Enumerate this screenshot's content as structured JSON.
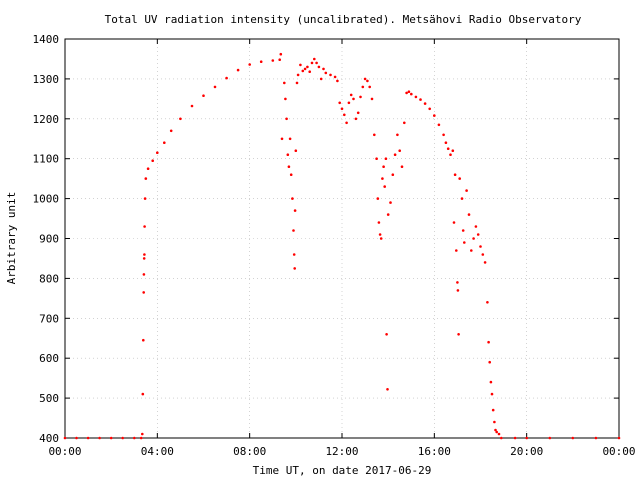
{
  "chart_data": {
    "type": "scatter",
    "title": "Total UV radiation intensity (uncalibrated). Metsähovi Radio Observatory",
    "xlabel": "Time UT, on date 2017-06-29",
    "ylabel": "Arbitrary unit",
    "xlim": [
      0,
      24
    ],
    "ylim": [
      400,
      1400
    ],
    "x_ticks": [
      0,
      4,
      8,
      12,
      16,
      20,
      24
    ],
    "x_tick_labels": [
      "00:00",
      "04:00",
      "08:00",
      "12:00",
      "16:00",
      "20:00",
      "00:00"
    ],
    "y_ticks": [
      400,
      500,
      600,
      700,
      800,
      900,
      1000,
      1100,
      1200,
      1300,
      1400
    ],
    "grid": true,
    "marker_color": "#ff0000",
    "series": [
      {
        "points": [
          [
            0.0,
            400
          ],
          [
            0.5,
            400
          ],
          [
            1.0,
            400
          ],
          [
            1.5,
            400
          ],
          [
            2.0,
            400
          ],
          [
            2.5,
            400
          ],
          [
            3.0,
            400
          ],
          [
            3.3,
            400
          ],
          [
            3.35,
            410
          ],
          [
            3.37,
            510
          ],
          [
            3.39,
            645
          ],
          [
            3.41,
            765
          ],
          [
            3.42,
            810
          ],
          [
            3.43,
            850
          ],
          [
            3.44,
            860
          ],
          [
            3.45,
            930
          ],
          [
            3.47,
            1000
          ],
          [
            3.5,
            1050
          ],
          [
            3.6,
            1075
          ],
          [
            3.8,
            1095
          ],
          [
            4.0,
            1115
          ],
          [
            4.3,
            1140
          ],
          [
            4.6,
            1170
          ],
          [
            5.0,
            1200
          ],
          [
            5.5,
            1232
          ],
          [
            6.0,
            1258
          ],
          [
            6.5,
            1280
          ],
          [
            7.0,
            1302
          ],
          [
            7.5,
            1322
          ],
          [
            8.0,
            1336
          ],
          [
            8.5,
            1343
          ],
          [
            9.0,
            1346
          ],
          [
            9.3,
            1348
          ],
          [
            9.35,
            1362
          ],
          [
            9.4,
            1150
          ],
          [
            9.5,
            1290
          ],
          [
            9.55,
            1250
          ],
          [
            9.6,
            1200
          ],
          [
            9.65,
            1110
          ],
          [
            9.7,
            1080
          ],
          [
            9.75,
            1150
          ],
          [
            9.8,
            1060
          ],
          [
            9.85,
            1000
          ],
          [
            9.9,
            920
          ],
          [
            9.93,
            860
          ],
          [
            9.95,
            825
          ],
          [
            9.97,
            970
          ],
          [
            10.0,
            1120
          ],
          [
            10.05,
            1290
          ],
          [
            10.1,
            1310
          ],
          [
            10.2,
            1335
          ],
          [
            10.3,
            1320
          ],
          [
            10.4,
            1325
          ],
          [
            10.5,
            1330
          ],
          [
            10.6,
            1318
          ],
          [
            10.7,
            1340
          ],
          [
            10.8,
            1350
          ],
          [
            10.9,
            1340
          ],
          [
            11.0,
            1330
          ],
          [
            11.1,
            1300
          ],
          [
            11.2,
            1325
          ],
          [
            11.3,
            1315
          ],
          [
            11.5,
            1310
          ],
          [
            11.7,
            1305
          ],
          [
            11.8,
            1295
          ],
          [
            11.9,
            1240
          ],
          [
            12.0,
            1225
          ],
          [
            12.1,
            1210
          ],
          [
            12.2,
            1190
          ],
          [
            12.3,
            1240
          ],
          [
            12.4,
            1260
          ],
          [
            12.5,
            1250
          ],
          [
            12.6,
            1200
          ],
          [
            12.7,
            1215
          ],
          [
            12.8,
            1255
          ],
          [
            12.9,
            1280
          ],
          [
            13.0,
            1300
          ],
          [
            13.1,
            1295
          ],
          [
            13.2,
            1280
          ],
          [
            13.3,
            1250
          ],
          [
            13.4,
            1160
          ],
          [
            13.5,
            1100
          ],
          [
            13.55,
            1000
          ],
          [
            13.6,
            940
          ],
          [
            13.65,
            910
          ],
          [
            13.7,
            900
          ],
          [
            13.75,
            1050
          ],
          [
            13.8,
            1080
          ],
          [
            13.85,
            1030
          ],
          [
            13.9,
            1100
          ],
          [
            13.93,
            660
          ],
          [
            13.97,
            522
          ],
          [
            14.0,
            960
          ],
          [
            14.1,
            990
          ],
          [
            14.2,
            1060
          ],
          [
            14.3,
            1110
          ],
          [
            14.4,
            1160
          ],
          [
            14.5,
            1120
          ],
          [
            14.6,
            1080
          ],
          [
            14.7,
            1190
          ],
          [
            14.8,
            1265
          ],
          [
            14.9,
            1268
          ],
          [
            15.0,
            1262
          ],
          [
            15.2,
            1255
          ],
          [
            15.4,
            1248
          ],
          [
            15.6,
            1238
          ],
          [
            15.8,
            1225
          ],
          [
            16.0,
            1208
          ],
          [
            16.2,
            1185
          ],
          [
            16.4,
            1160
          ],
          [
            16.5,
            1140
          ],
          [
            16.6,
            1125
          ],
          [
            16.7,
            1110
          ],
          [
            16.8,
            1120
          ],
          [
            16.85,
            940
          ],
          [
            16.9,
            1060
          ],
          [
            16.95,
            870
          ],
          [
            17.0,
            790
          ],
          [
            17.02,
            770
          ],
          [
            17.05,
            660
          ],
          [
            17.1,
            1050
          ],
          [
            17.2,
            1000
          ],
          [
            17.25,
            920
          ],
          [
            17.3,
            890
          ],
          [
            17.4,
            1020
          ],
          [
            17.5,
            960
          ],
          [
            17.6,
            870
          ],
          [
            17.7,
            900
          ],
          [
            17.8,
            930
          ],
          [
            17.9,
            910
          ],
          [
            18.0,
            880
          ],
          [
            18.1,
            860
          ],
          [
            18.2,
            840
          ],
          [
            18.3,
            740
          ],
          [
            18.35,
            640
          ],
          [
            18.4,
            590
          ],
          [
            18.45,
            540
          ],
          [
            18.5,
            510
          ],
          [
            18.55,
            470
          ],
          [
            18.6,
            440
          ],
          [
            18.65,
            420
          ],
          [
            18.7,
            415
          ],
          [
            18.8,
            410
          ],
          [
            18.9,
            400
          ],
          [
            19.5,
            400
          ],
          [
            20.0,
            400
          ],
          [
            21.0,
            400
          ],
          [
            22.0,
            400
          ],
          [
            23.0,
            400
          ],
          [
            24.0,
            400
          ]
        ]
      }
    ]
  }
}
